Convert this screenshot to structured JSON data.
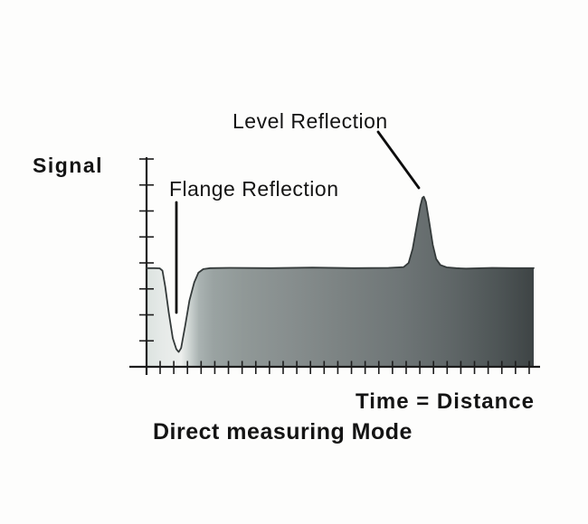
{
  "labels": {
    "ylabel": "Signal",
    "xlabel": "Time = Distance",
    "caption": "Direct measuring Mode",
    "annotation_level": "Level Reflection",
    "annotation_flange": "Flange Reflection"
  },
  "colors": {
    "background": "#fdfdfc",
    "text": "#141414",
    "axis": "#1c1c1c",
    "curve_outline": "#343a3a",
    "leader_line": "#0d0d0d",
    "fill_light": "#edefed",
    "fill_dark": "#3e4445"
  },
  "chart_data": {
    "type": "area",
    "title": "Direct measuring Mode",
    "xlabel": "Time = Distance",
    "ylabel": "Signal",
    "x_range": [
      0,
      28
    ],
    "y_range": [
      0,
      8
    ],
    "x_tick_count": 28,
    "y_tick_count": 8,
    "grid": false,
    "legend": "none",
    "description": "Echo signal envelope vs time for a radar level gauge in direct measuring mode: a baseline plateau, a sharp dip (flange reflection) near the origin, and a narrow peak (level reflection) further out.",
    "series": [
      {
        "name": "echo-signal-envelope",
        "points": [
          [
            0,
            3.8
          ],
          [
            0.55,
            3.8
          ],
          [
            0.95,
            3.79
          ],
          [
            1.15,
            3.7
          ],
          [
            1.35,
            3.1
          ],
          [
            1.6,
            2.1
          ],
          [
            1.9,
            1.1
          ],
          [
            2.15,
            0.68
          ],
          [
            2.32,
            0.57
          ],
          [
            2.5,
            0.72
          ],
          [
            2.8,
            1.6
          ],
          [
            3.1,
            2.55
          ],
          [
            3.45,
            3.25
          ],
          [
            3.75,
            3.62
          ],
          [
            4.1,
            3.76
          ],
          [
            4.6,
            3.8
          ],
          [
            6.0,
            3.81
          ],
          [
            9.0,
            3.8
          ],
          [
            12.0,
            3.82
          ],
          [
            15.0,
            3.8
          ],
          [
            17.5,
            3.81
          ],
          [
            18.6,
            3.84
          ],
          [
            18.95,
            4.0
          ],
          [
            19.25,
            4.55
          ],
          [
            19.55,
            5.45
          ],
          [
            19.8,
            6.2
          ],
          [
            19.95,
            6.5
          ],
          [
            20.05,
            6.55
          ],
          [
            20.2,
            6.35
          ],
          [
            20.45,
            5.55
          ],
          [
            20.7,
            4.7
          ],
          [
            20.95,
            4.15
          ],
          [
            21.25,
            3.92
          ],
          [
            21.7,
            3.83
          ],
          [
            22.4,
            3.8
          ],
          [
            23.1,
            3.78
          ],
          [
            25.0,
            3.81
          ],
          [
            26.5,
            3.8
          ],
          [
            28,
            3.8
          ]
        ]
      }
    ],
    "annotations": [
      {
        "label": "Flange Reflection",
        "x": 2.32,
        "y": 0.57,
        "feature": "dip"
      },
      {
        "label": "Level Reflection",
        "x": 20.05,
        "y": 6.55,
        "feature": "peak"
      }
    ],
    "gradient_stops": [
      [
        "0%",
        "#dce3e0"
      ],
      [
        "4.2%",
        "#e6eae8"
      ],
      [
        "8.9%",
        "#edefed"
      ],
      [
        "11.2%",
        "#ccd3d1"
      ],
      [
        "13.6%",
        "#a9b2b1"
      ],
      [
        "17.1%",
        "#9aa3a2"
      ],
      [
        "25.2%",
        "#909897"
      ],
      [
        "36.9%",
        "#878e8e"
      ],
      [
        "50.9%",
        "#7b8282"
      ],
      [
        "65%",
        "#6f7677"
      ],
      [
        "79%",
        "#5f6667"
      ],
      [
        "90.7%",
        "#4e5556"
      ],
      [
        "100%",
        "#3e4445"
      ]
    ]
  }
}
